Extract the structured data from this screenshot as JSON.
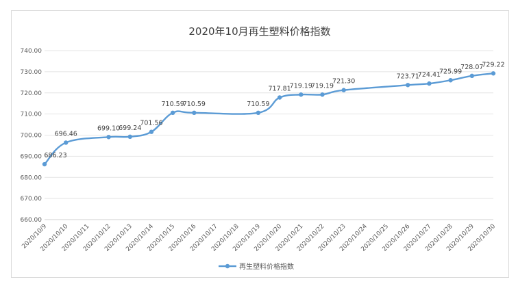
{
  "chart_data": {
    "type": "line",
    "title": "2020年10月再生塑料价格指数",
    "categories": [
      "2020/10/9",
      "2020/10/10",
      "2020/10/11",
      "2020/10/12",
      "2020/10/13",
      "2020/10/14",
      "2020/10/15",
      "2020/10/16",
      "2020/10/17",
      "2020/10/18",
      "2020/10/19",
      "2020/10/20",
      "2020/10/21",
      "2020/10/22",
      "2020/10/23",
      "2020/10/24",
      "2020/10/25",
      "2020/10/26",
      "2020/10/27",
      "2020/10/28",
      "2020/10/29",
      "2020/10/30"
    ],
    "series": [
      {
        "name": "再生塑料价格指数",
        "color": "#5b9bd5",
        "points": [
          {
            "x": "2020/10/9",
            "y": 686.23,
            "label": "686.23"
          },
          {
            "x": "2020/10/10",
            "y": 696.46,
            "label": "696.46"
          },
          {
            "x": "2020/10/12",
            "y": 699.1,
            "label": "699.10"
          },
          {
            "x": "2020/10/13",
            "y": 699.24,
            "label": "699.24"
          },
          {
            "x": "2020/10/14",
            "y": 701.56,
            "label": "701.56"
          },
          {
            "x": "2020/10/15",
            "y": 710.59,
            "label": "710.59"
          },
          {
            "x": "2020/10/16",
            "y": 710.59,
            "label": "710.59"
          },
          {
            "x": "2020/10/19",
            "y": 710.59,
            "label": "710.59"
          },
          {
            "x": "2020/10/20",
            "y": 717.81,
            "label": "717.81"
          },
          {
            "x": "2020/10/21",
            "y": 719.19,
            "label": "719.19"
          },
          {
            "x": "2020/10/22",
            "y": 719.19,
            "label": "719.19"
          },
          {
            "x": "2020/10/23",
            "y": 721.3,
            "label": "721.30"
          },
          {
            "x": "2020/10/26",
            "y": 723.71,
            "label": "723.71"
          },
          {
            "x": "2020/10/27",
            "y": 724.41,
            "label": "724.41"
          },
          {
            "x": "2020/10/28",
            "y": 725.99,
            "label": "725.99"
          },
          {
            "x": "2020/10/29",
            "y": 728.07,
            "label": "728.07"
          },
          {
            "x": "2020/10/30",
            "y": 729.22,
            "label": "729.22"
          }
        ]
      }
    ],
    "ylim": [
      660,
      740
    ],
    "yticks": [
      "660.00",
      "670.00",
      "680.00",
      "690.00",
      "700.00",
      "710.00",
      "720.00",
      "730.00",
      "740.00"
    ],
    "grid": true,
    "legend": "bottom"
  }
}
